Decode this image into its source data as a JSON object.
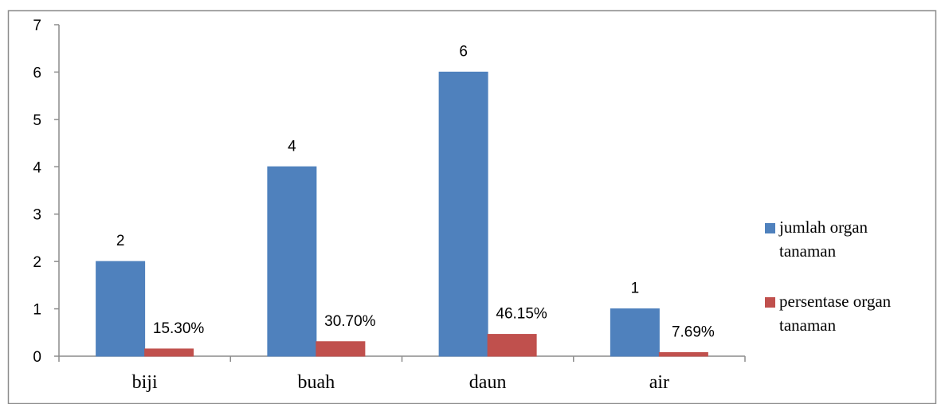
{
  "chart_data": {
    "type": "bar",
    "categories": [
      "biji",
      "buah",
      "daun",
      "air"
    ],
    "series": [
      {
        "name": "jumlah organ tanaman",
        "values": [
          2,
          4,
          6,
          1
        ],
        "labels": [
          "2",
          "4",
          "6",
          "1"
        ],
        "color": "#4F81BD"
      },
      {
        "name": "persentase organ tanaman",
        "values": [
          0.153,
          0.307,
          0.4615,
          0.0769
        ],
        "labels": [
          "15.30%",
          "30.70%",
          "46.15%",
          "7.69%"
        ],
        "color": "#C0504D"
      }
    ],
    "yticks": [
      "0",
      "1",
      "2",
      "3",
      "4",
      "5",
      "6",
      "7"
    ],
    "ylim": [
      0,
      7
    ],
    "grid": false,
    "legend": "right",
    "legend_lines": [
      [
        "jumlah organ",
        "tanaman"
      ],
      [
        "persentase organ",
        "tanaman"
      ]
    ]
  }
}
